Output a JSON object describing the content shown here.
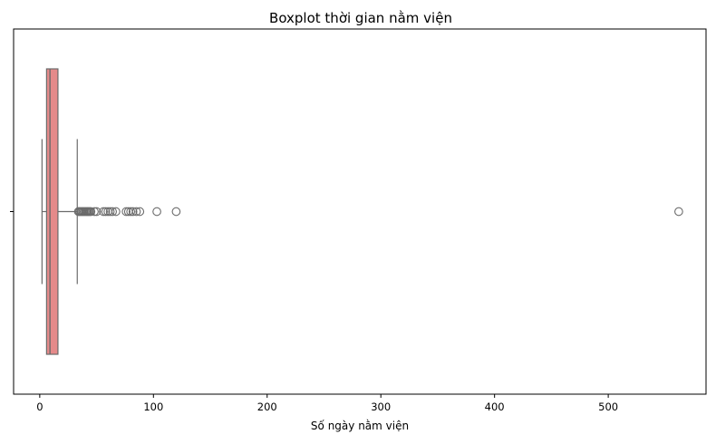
{
  "chart_data": {
    "type": "boxplot",
    "title": "Boxplot thời gian nằm viện",
    "xlabel": "Số ngày nằm viện",
    "ylabel": "",
    "orientation": "horizontal",
    "xlim": [
      -23,
      586
    ],
    "xticks": [
      0,
      100,
      200,
      300,
      400,
      500
    ],
    "xtick_labels": [
      "0",
      "100",
      "200",
      "300",
      "400",
      "500"
    ],
    "yticks": [
      ""
    ],
    "grid": false,
    "legend": "none",
    "box": {
      "whisker_low": 2,
      "q1": 6,
      "median": 9,
      "q3": 16,
      "whisker_high": 33
    },
    "outliers": [
      34,
      35,
      36,
      37,
      38,
      39,
      40,
      41,
      42,
      43,
      44,
      45,
      48,
      50,
      56,
      58,
      60,
      62,
      64,
      67,
      76,
      78,
      80,
      82,
      85,
      88,
      103,
      120,
      562
    ],
    "colors": {
      "box_fill": "#e58a8a",
      "line": "#6b6b6b",
      "frame": "#000000"
    }
  }
}
